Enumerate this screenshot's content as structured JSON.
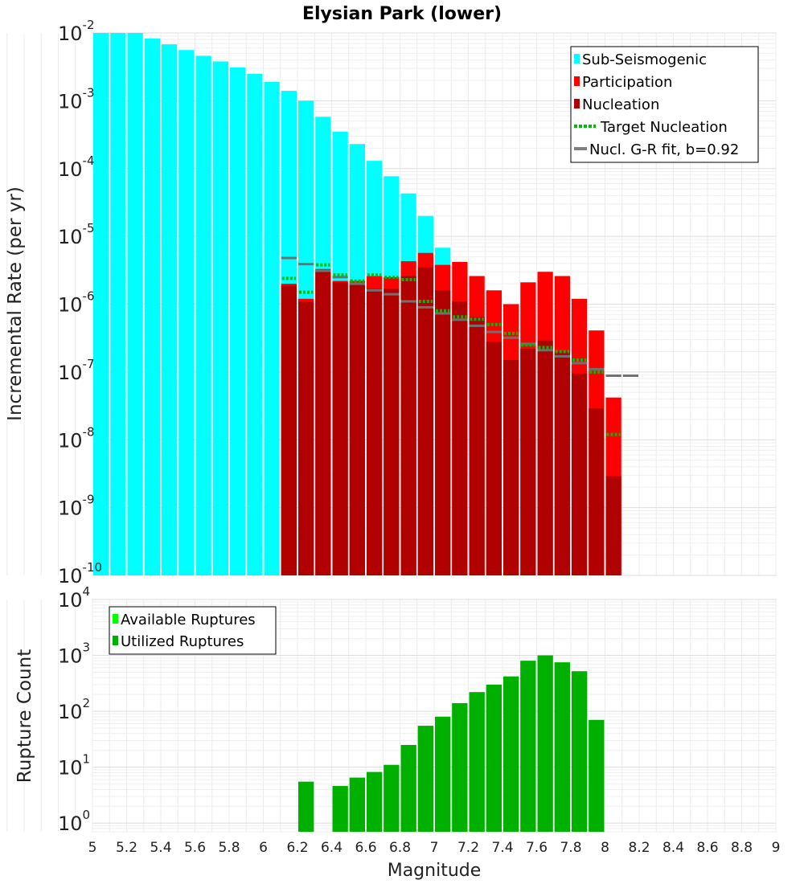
{
  "chart_data": [
    {
      "type": "bar",
      "title": "Elysian Park (lower)",
      "ylabel": "Incremental Rate (per yr)",
      "xlabel": "",
      "yscale": "log",
      "ylim": [
        1e-10,
        0.01
      ],
      "xlim": [
        5,
        9
      ],
      "bin_width": 0.1,
      "grid": true,
      "legend_position": "top-right",
      "y_ticks": [
        {
          "base": "10",
          "exp": "-2",
          "value": 0.01
        },
        {
          "base": "10",
          "exp": "-3",
          "value": 0.001
        },
        {
          "base": "10",
          "exp": "-4",
          "value": 0.0001
        },
        {
          "base": "10",
          "exp": "-5",
          "value": 1e-05
        },
        {
          "base": "10",
          "exp": "-6",
          "value": 1e-06
        },
        {
          "base": "10",
          "exp": "-7",
          "value": 1e-07
        },
        {
          "base": "10",
          "exp": "-8",
          "value": 1e-08
        },
        {
          "base": "10",
          "exp": "-9",
          "value": 1e-09
        },
        {
          "base": "10",
          "exp": "-10",
          "value": 1e-10
        }
      ],
      "series": [
        {
          "name": "Sub-Seismogenic",
          "color": "#00ffff",
          "mark": "bar",
          "x": [
            5.05,
            5.15,
            5.25,
            5.35,
            5.45,
            5.55,
            5.65,
            5.75,
            5.85,
            5.95,
            6.05,
            6.15,
            6.25,
            6.35,
            6.45,
            6.55,
            6.65,
            6.75,
            6.85,
            6.95,
            7.05
          ],
          "values": [
            0.01,
            0.01,
            0.01,
            0.0083,
            0.0068,
            0.0056,
            0.0046,
            0.0038,
            0.0031,
            0.0025,
            0.0019,
            0.0014,
            0.001,
            0.00058,
            0.00035,
            0.00023,
            0.00013,
            7.7e-05,
            4.3e-05,
            2e-05,
            6.8e-06
          ]
        },
        {
          "name": "Participation",
          "color": "#ff0000",
          "mark": "bar",
          "x": [
            6.15,
            6.25,
            6.35,
            6.45,
            6.55,
            6.65,
            6.75,
            6.85,
            6.95,
            7.05,
            7.15,
            7.25,
            7.35,
            7.45,
            7.55,
            7.65,
            7.75,
            7.85,
            7.95,
            8.05
          ],
          "values": [
            2e-06,
            1.2e-06,
            3.3e-06,
            2.2e-06,
            2.2e-06,
            2.6e-06,
            2.5e-06,
            4.3e-06,
            5.7e-06,
            3.8e-06,
            4.2e-06,
            2.6e-06,
            1.6e-06,
            1e-06,
            2.1e-06,
            3e-06,
            2.6e-06,
            1.2e-06,
            4.1e-07,
            4.2e-08
          ]
        },
        {
          "name": "Nucleation",
          "color": "#b00000",
          "mark": "bar",
          "x": [
            6.15,
            6.25,
            6.35,
            6.45,
            6.55,
            6.65,
            6.75,
            6.85,
            6.95,
            7.05,
            7.15,
            7.25,
            7.35,
            7.45,
            7.55,
            7.65,
            7.75,
            7.85,
            7.95,
            8.05
          ],
          "values": [
            1.9e-06,
            1.1e-06,
            3e-06,
            2.1e-06,
            2e-06,
            1.7e-06,
            1.7e-06,
            2.6e-06,
            3.5e-06,
            1.6e-06,
            1.1e-06,
            6.5e-07,
            2.8e-07,
            1.5e-07,
            2.2e-07,
            2.9e-07,
            2e-07,
            9.5e-08,
            2.9e-08,
            2.9e-09
          ]
        },
        {
          "name": "Target Nucleation",
          "color": "#00bb00",
          "mark": "dotted-segment",
          "x": [
            6.15,
            6.25,
            6.35,
            6.45,
            6.55,
            6.65,
            6.75,
            6.85,
            6.95,
            7.05,
            7.15,
            7.25,
            7.35,
            7.45,
            7.55,
            7.65,
            7.75,
            7.85,
            7.95,
            8.05
          ],
          "values": [
            2.4e-06,
            1.5e-06,
            3.8e-06,
            2.7e-06,
            2.2e-06,
            2.7e-06,
            2.5e-06,
            2.3e-06,
            1.1e-06,
            8e-07,
            6.5e-07,
            6e-07,
            5e-07,
            3.7e-07,
            2.5e-07,
            2.3e-07,
            2e-07,
            1.5e-07,
            1e-07,
            1.2e-08
          ]
        },
        {
          "name": "Nucl. G-R fit, b=0.92",
          "color": "#808080",
          "mark": "segment",
          "x": [
            6.15,
            6.25,
            6.35,
            6.45,
            6.55,
            6.65,
            6.75,
            6.85,
            6.95,
            7.05,
            7.15,
            7.25,
            7.35,
            7.45,
            7.55,
            7.65,
            7.75,
            7.85,
            7.95,
            8.05,
            8.15
          ],
          "values": [
            4.8e-06,
            3.9e-06,
            3.1e-06,
            2.5e-06,
            2e-06,
            1.6e-06,
            1.4e-06,
            1.1e-06,
            9e-07,
            7.3e-07,
            5.9e-07,
            4.8e-07,
            3.9e-07,
            3.2e-07,
            2.6e-07,
            2.1e-07,
            1.7e-07,
            1.35e-07,
            1.1e-07,
            8.8e-08,
            8.8e-08
          ]
        }
      ]
    },
    {
      "type": "bar",
      "title": "",
      "ylabel": "Rupture Count",
      "xlabel": "Magnitude",
      "yscale": "log",
      "ylim": [
        0.7,
        10000
      ],
      "xlim": [
        5,
        9
      ],
      "bin_width": 0.1,
      "grid": true,
      "legend_position": "top-left",
      "x_tick_labels": [
        "5",
        "5.2",
        "5.4",
        "5.6",
        "5.8",
        "6",
        "6.2",
        "6.4",
        "6.6",
        "6.8",
        "7",
        "7.2",
        "7.4",
        "7.6",
        "7.8",
        "8",
        "8.2",
        "8.4",
        "8.6",
        "8.8",
        "9"
      ],
      "y_ticks": [
        {
          "base": "10",
          "exp": "4",
          "value": 10000
        },
        {
          "base": "10",
          "exp": "3",
          "value": 1000
        },
        {
          "base": "10",
          "exp": "2",
          "value": 100
        },
        {
          "base": "10",
          "exp": "1",
          "value": 10
        },
        {
          "base": "10",
          "exp": "0",
          "value": 1
        }
      ],
      "series": [
        {
          "name": "Available Ruptures",
          "color": "#00ff00",
          "mark": "bar",
          "x": [
            6.25,
            6.45,
            6.55,
            6.65,
            6.75,
            6.85,
            6.95,
            7.05,
            7.15,
            7.25,
            7.35,
            7.45,
            7.55,
            7.65,
            7.75,
            7.85,
            7.95
          ],
          "values": [
            5.5,
            4.6,
            6.5,
            8.2,
            11,
            25,
            55,
            80,
            140,
            220,
            300,
            420,
            800,
            1000,
            750,
            520,
            70
          ]
        },
        {
          "name": "Utilized Ruptures",
          "color": "#00b000",
          "mark": "bar",
          "x": [
            6.25,
            6.45,
            6.55,
            6.65,
            6.75,
            6.85,
            6.95,
            7.05,
            7.15,
            7.25,
            7.35,
            7.45,
            7.55,
            7.65,
            7.75,
            7.85,
            7.95
          ],
          "values": [
            5.5,
            4.6,
            6.5,
            8.2,
            11,
            25,
            55,
            80,
            140,
            220,
            300,
            420,
            800,
            1000,
            750,
            520,
            70
          ]
        }
      ]
    }
  ]
}
